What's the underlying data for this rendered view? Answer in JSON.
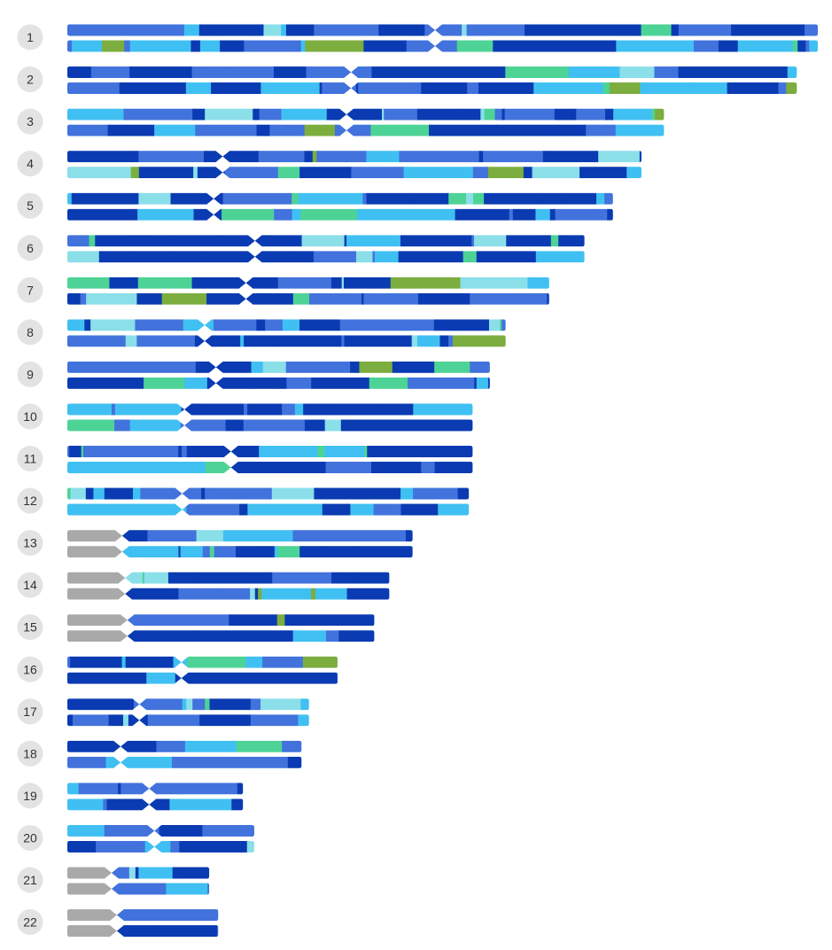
{
  "colors": {
    "dark": "#0a3bb2",
    "mid": "#4272dc",
    "light": "#40c0f2",
    "pale": "#8adfe9",
    "green": "#4ed396",
    "olive": "#7cad3f",
    "gray": "#a9a9a9",
    "circle": "#e3e3e3"
  },
  "chromosomes": [
    {
      "label": "1",
      "length": 100,
      "centromere": 49.0,
      "acrocentric": false
    },
    {
      "label": "2",
      "length": 97.2,
      "centromere": 37.8,
      "acrocentric": false
    },
    {
      "label": "3",
      "length": 79.5,
      "centromere": 37.2,
      "acrocentric": false
    },
    {
      "label": "4",
      "length": 76.5,
      "centromere": 20.7,
      "acrocentric": false
    },
    {
      "label": "5",
      "length": 72.7,
      "centromere": 19.5,
      "acrocentric": false
    },
    {
      "label": "6",
      "length": 68.9,
      "centromere": 25.0,
      "acrocentric": false
    },
    {
      "label": "7",
      "length": 64.2,
      "centromere": 23.8,
      "acrocentric": false
    },
    {
      "label": "8",
      "length": 58.4,
      "centromere": 18.3,
      "acrocentric": false
    },
    {
      "label": "9",
      "length": 56.3,
      "centromere": 19.8,
      "acrocentric": false
    },
    {
      "label": "10",
      "length": 54.0,
      "centromere": 15.6,
      "acrocentric": false
    },
    {
      "label": "11",
      "length": 54.0,
      "centromere": 21.8,
      "acrocentric": false
    },
    {
      "label": "12",
      "length": 53.5,
      "centromere": 15.3,
      "acrocentric": false
    },
    {
      "label": "13",
      "length": 46.0,
      "centromere": 7.3,
      "acrocentric": true
    },
    {
      "label": "14",
      "length": 42.9,
      "centromere": 7.7,
      "acrocentric": true
    },
    {
      "label": "15",
      "length": 40.9,
      "centromere": 8.0,
      "acrocentric": true
    },
    {
      "label": "16",
      "length": 36.0,
      "centromere": 15.2,
      "acrocentric": false
    },
    {
      "label": "17",
      "length": 32.2,
      "centromere": 9.6,
      "acrocentric": false
    },
    {
      "label": "18",
      "length": 31.2,
      "centromere": 7.1,
      "acrocentric": false
    },
    {
      "label": "19",
      "length": 23.4,
      "centromere": 10.9,
      "acrocentric": false
    },
    {
      "label": "20",
      "length": 24.9,
      "centromere": 11.6,
      "acrocentric": false
    },
    {
      "label": "21",
      "length": 18.9,
      "centromere": 5.9,
      "acrocentric": true
    },
    {
      "label": "22",
      "length": 20.1,
      "centromere": 6.6,
      "acrocentric": true
    }
  ]
}
